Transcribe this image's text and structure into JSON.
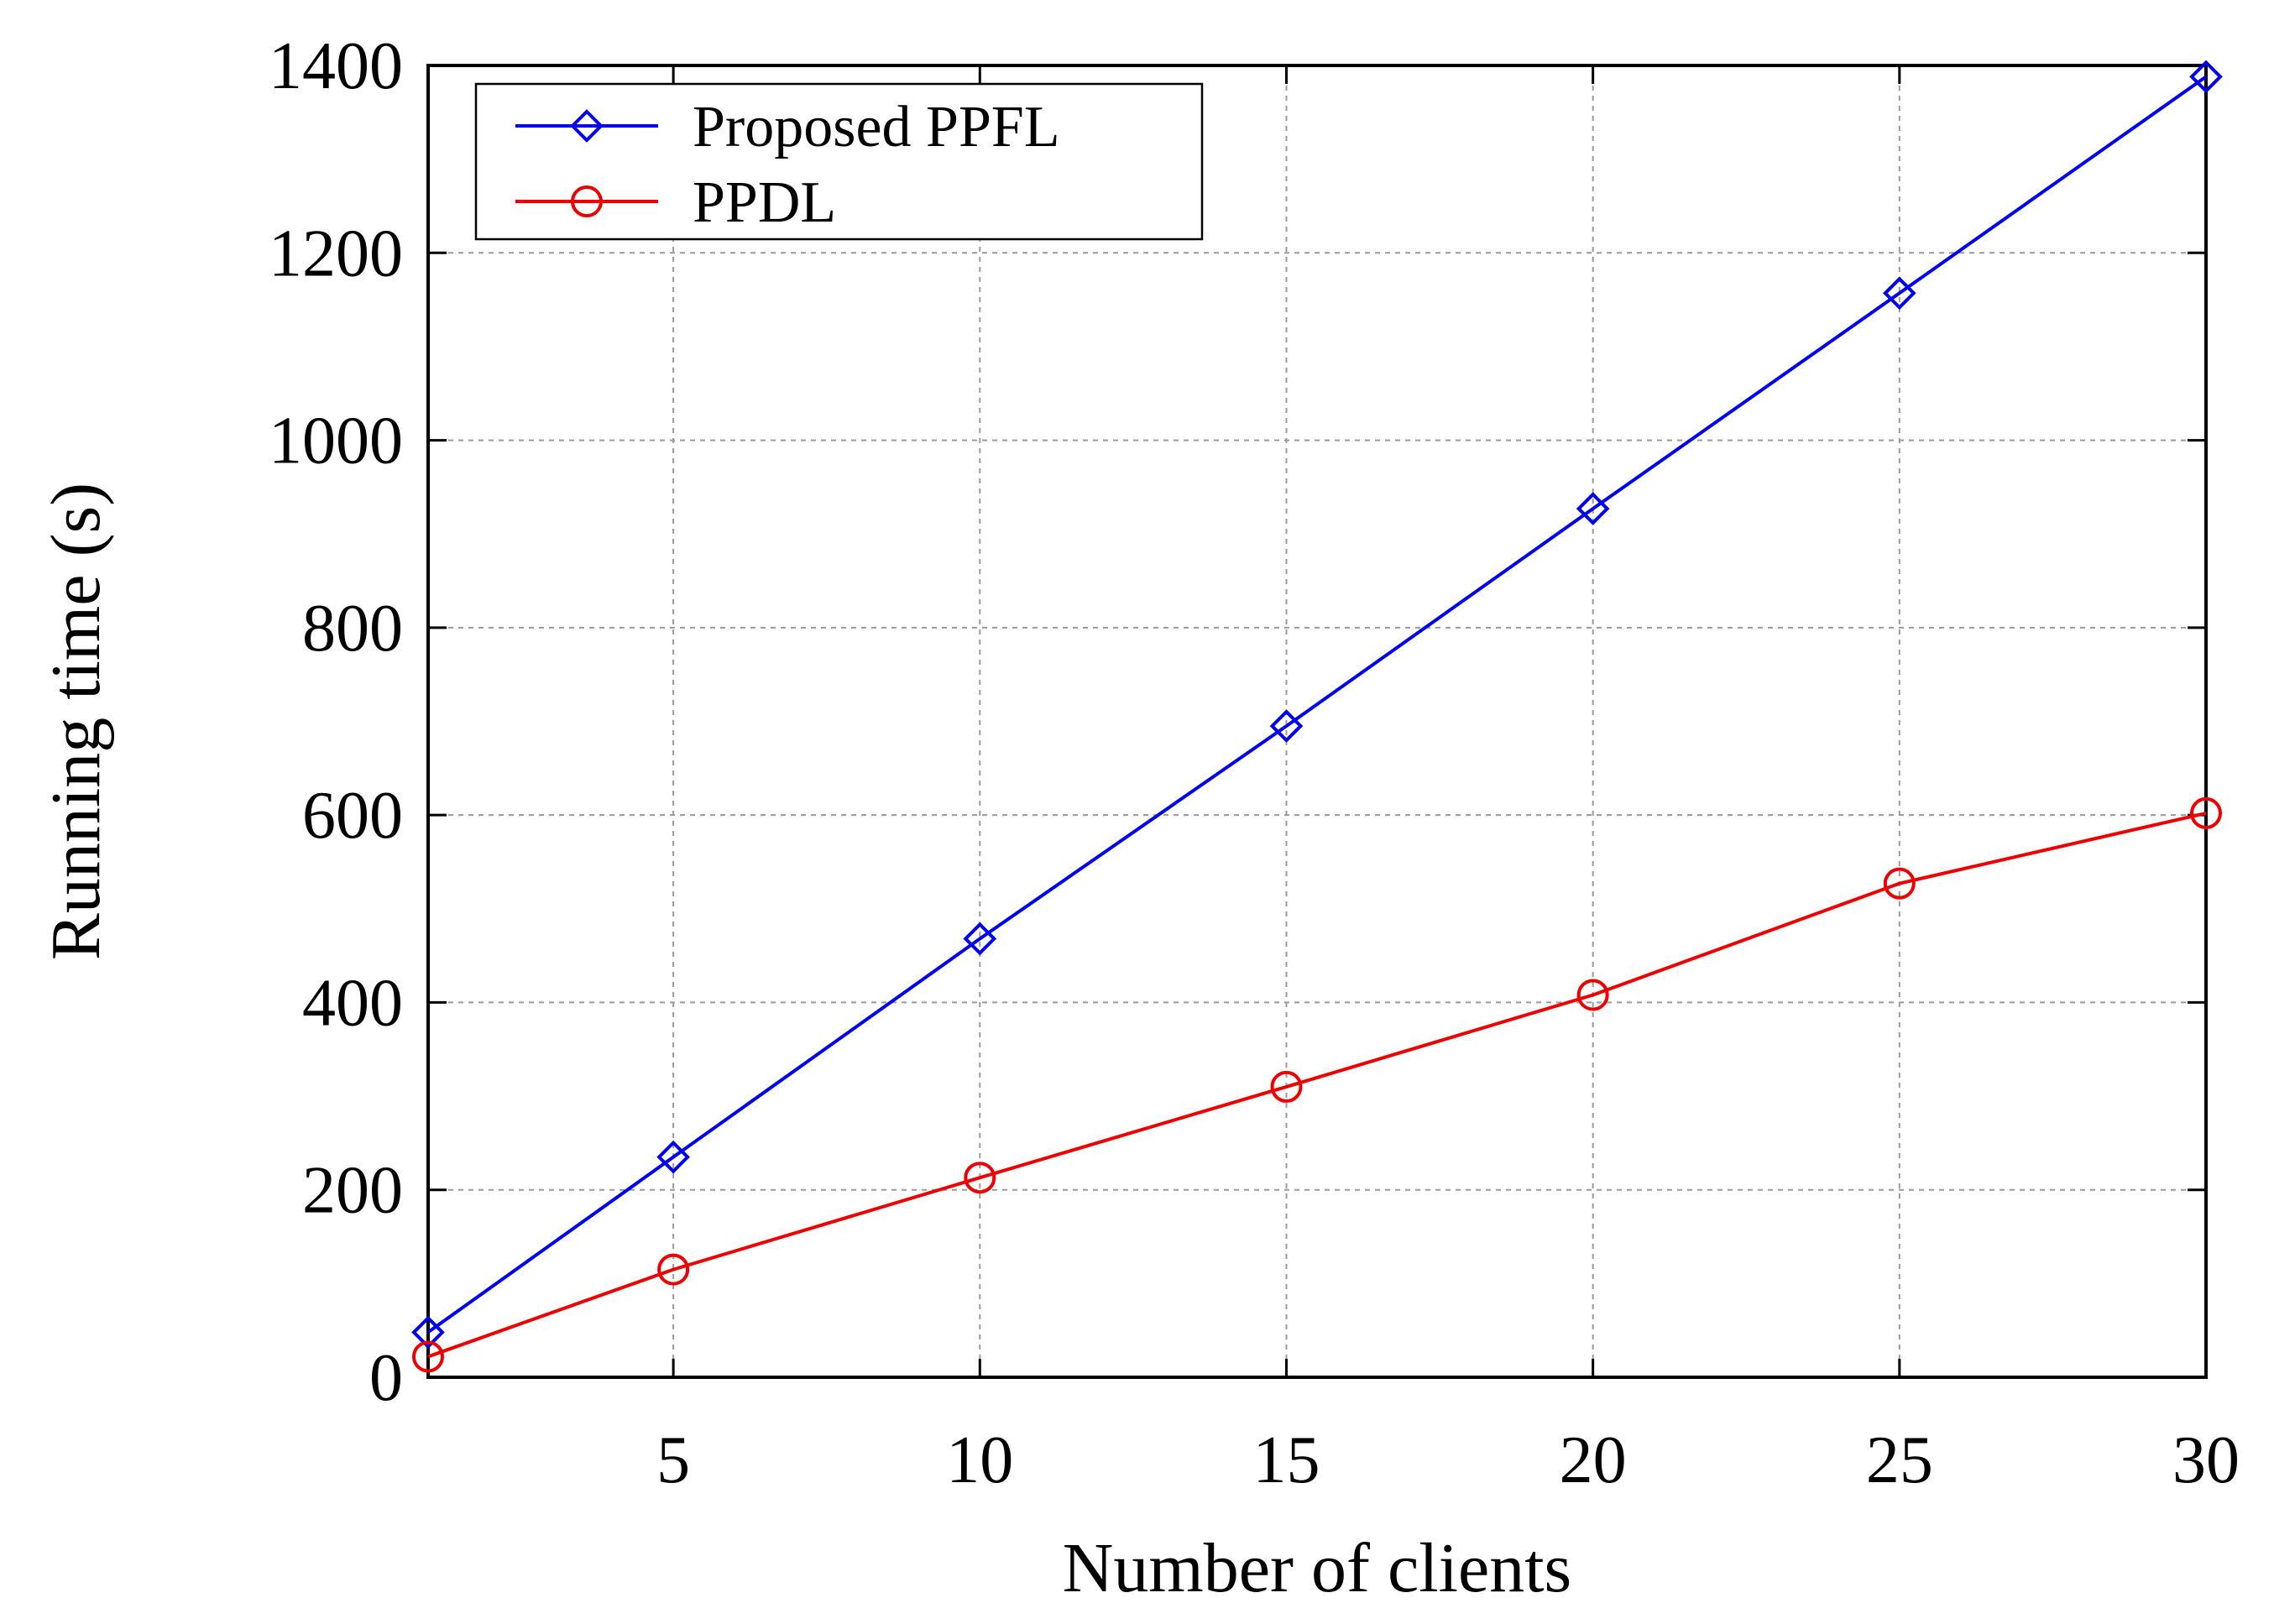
{
  "chart_data": {
    "type": "line",
    "title": "",
    "xlabel": "Number of clients",
    "ylabel": "Running time (s)",
    "xlim": [
      1,
      30
    ],
    "ylim": [
      0,
      1400
    ],
    "x_ticks": [
      5,
      10,
      15,
      20,
      25,
      30
    ],
    "y_ticks": [
      0,
      200,
      400,
      600,
      800,
      1000,
      1200,
      1400
    ],
    "grid": true,
    "legend_position": "top-left",
    "x": [
      1,
      5,
      10,
      15,
      20,
      25,
      30
    ],
    "series": [
      {
        "name": "Proposed PPFL",
        "color": "#0000ee",
        "marker": "diamond",
        "values": [
          48,
          235,
          468,
          695,
          927,
          1157,
          1388
        ]
      },
      {
        "name": "PPDL",
        "color": "#ee0000",
        "marker": "circle",
        "values": [
          22,
          115,
          213,
          310,
          408,
          527,
          602
        ]
      }
    ]
  }
}
